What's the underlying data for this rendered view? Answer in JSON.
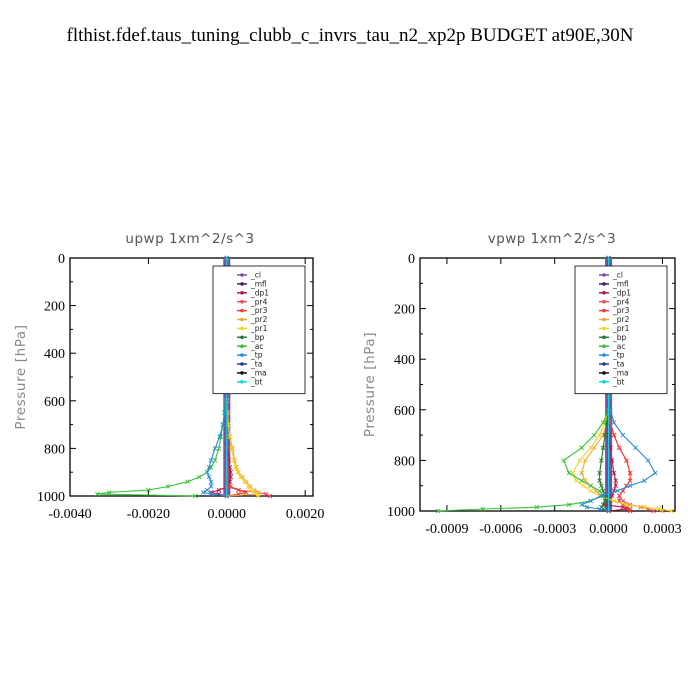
{
  "page_title": "flthist.fdef.taus_tuning_clubb_c_invrs_tau_n2_xp2p  BUDGET at90E,30N",
  "chart_data": [
    {
      "type": "line",
      "title": "upwp   1xm^2/s^3",
      "ylabel": "Pressure  [hPa]",
      "xlim": [
        -0.004,
        0.0022
      ],
      "ylim": [
        1000,
        0
      ],
      "xticks": [
        -0.004,
        -0.002,
        0.0,
        0.002
      ],
      "xtick_labels": [
        "-0.0040",
        "-0.0020",
        "0.0000",
        "0.0020"
      ],
      "yticks": [
        0,
        200,
        400,
        600,
        800,
        1000
      ],
      "ytick_labels": [
        "0",
        "200",
        "400",
        "600",
        "800",
        "1000"
      ],
      "legend_position": "top-right",
      "levels": [
        0,
        50,
        100,
        150,
        200,
        250,
        300,
        350,
        400,
        450,
        500,
        550,
        600,
        650,
        700,
        750,
        800,
        850,
        880,
        900,
        920,
        940,
        960,
        975,
        985,
        992,
        1000
      ],
      "series": [
        {
          "name": "_cl",
          "color": "#7b4fa8",
          "values": [
            0,
            0,
            0,
            0,
            0,
            0,
            0,
            0,
            0,
            0,
            0,
            0,
            0,
            0,
            0,
            0,
            0,
            0,
            0,
            0,
            0,
            0,
            0,
            0,
            0,
            0,
            0
          ]
        },
        {
          "name": "_mfl",
          "color": "#4b1a6b",
          "values": [
            0,
            0,
            0,
            0,
            0,
            0,
            0,
            0,
            0,
            0,
            0,
            0,
            0,
            0,
            0,
            0,
            0,
            0,
            0,
            0,
            0,
            0,
            0,
            0,
            0,
            0,
            0
          ]
        },
        {
          "name": "_dp1",
          "color": "#b3164b",
          "values": [
            0,
            0,
            0,
            0,
            0,
            0,
            0,
            0,
            0,
            0,
            0,
            0,
            0,
            0,
            0,
            0,
            2e-05,
            5e-05,
            8e-05,
            0.0001,
            0.0001,
            8e-05,
            5e-05,
            -0.0002,
            -0.0004,
            -0.0002,
            0
          ]
        },
        {
          "name": "_pr4",
          "color": "#e8505a",
          "values": [
            0,
            0,
            0,
            0,
            0,
            0,
            0,
            0,
            0,
            0,
            0,
            0,
            0,
            0,
            0,
            0,
            0,
            0,
            0,
            0,
            0,
            0,
            0,
            0.0003,
            0.0008,
            0.001,
            0.0011
          ]
        },
        {
          "name": "_pr3",
          "color": "#f03c3c",
          "values": [
            0,
            0,
            0,
            0,
            0,
            0,
            0,
            0,
            0,
            0,
            0,
            0,
            0,
            0,
            0,
            0,
            0,
            0,
            0,
            0,
            0,
            0,
            0.0001,
            0.0003,
            0.0005,
            0.0003,
            0
          ]
        },
        {
          "name": "_pr2",
          "color": "#f2a53a",
          "values": [
            0,
            0,
            0,
            0,
            0,
            0,
            0,
            0,
            0,
            0,
            0,
            0,
            0,
            2e-05,
            4e-05,
            8e-05,
            0.00015,
            0.0002,
            0.00025,
            0.0003,
            0.0004,
            0.0005,
            0.0006,
            0.0007,
            0.0008,
            0.0008,
            0
          ]
        },
        {
          "name": "_pr1",
          "color": "#f5d21e",
          "values": [
            0,
            0,
            0,
            0,
            0,
            0,
            0,
            0,
            0,
            0,
            0,
            0,
            0,
            2e-05,
            4e-05,
            8e-05,
            0.00012,
            0.00018,
            0.00022,
            0.00028,
            0.00035,
            0.00045,
            0.00055,
            0.0006,
            0.0007,
            0.0008,
            0.0008
          ]
        },
        {
          "name": "_bp",
          "color": "#1f7a2a",
          "values": [
            0,
            0,
            0,
            0,
            0,
            0,
            0,
            0,
            0,
            0,
            0,
            0,
            0,
            0,
            0,
            0,
            0,
            0,
            0,
            0,
            0,
            0,
            0,
            0,
            0,
            0,
            0
          ]
        },
        {
          "name": "_ac",
          "color": "#36c236",
          "values": [
            0,
            0,
            0,
            0,
            0,
            0,
            0,
            0,
            0,
            0,
            0,
            0,
            -3e-05,
            -6e-05,
            -0.0001,
            -0.00015,
            -0.0002,
            -0.0003,
            -0.0004,
            -0.0005,
            -0.0007,
            -0.001,
            -0.0015,
            -0.002,
            -0.003,
            -0.0033,
            -0.0008
          ]
        },
        {
          "name": "_tp",
          "color": "#2a8ad6",
          "values": [
            0,
            0,
            0,
            0,
            0,
            0,
            0,
            0,
            0,
            0,
            0,
            0,
            -2e-05,
            -5e-05,
            -0.0001,
            -0.00018,
            -0.0003,
            -0.0004,
            -0.00045,
            -0.0005,
            -0.00045,
            -0.0004,
            -0.0004,
            -0.0005,
            -0.0006,
            -0.0004,
            0
          ]
        },
        {
          "name": "_ta",
          "color": "#1a3fa0",
          "values": [
            0,
            0,
            0,
            0,
            0,
            0,
            0,
            0,
            0,
            0,
            0,
            0,
            0,
            0,
            0,
            0,
            0,
            0,
            0,
            0,
            0,
            0,
            0,
            0,
            0,
            0,
            0
          ]
        },
        {
          "name": "_ma",
          "color": "#111111",
          "values": [
            0,
            0,
            0,
            0,
            0,
            0,
            0,
            0,
            0,
            0,
            0,
            0,
            0,
            0,
            0,
            0,
            0,
            0,
            0,
            0,
            0,
            0,
            0,
            0,
            0,
            0,
            0
          ]
        },
        {
          "name": "_bt",
          "color": "#11d4e0",
          "values": [
            0,
            0,
            0,
            0,
            0,
            0,
            0,
            0,
            0,
            0,
            0,
            0,
            0,
            0,
            0,
            0,
            0,
            0,
            0,
            0,
            0,
            0,
            0,
            0,
            0,
            0,
            0
          ]
        }
      ]
    },
    {
      "type": "line",
      "title": "vpwp   1xm^2/s^3",
      "ylabel": "Pressure  [hPa]",
      "xlim": [
        -0.00105,
        0.00037
      ],
      "ylim": [
        1000,
        0
      ],
      "xticks": [
        -0.0009,
        -0.0006,
        -0.0003,
        0.0,
        0.0003
      ],
      "xtick_labels": [
        "-0.0009",
        "-0.0006",
        "-0.0003",
        "0.0000",
        "0.0003"
      ],
      "yticks": [
        0,
        200,
        400,
        600,
        800,
        1000
      ],
      "ytick_labels": [
        "0",
        "200",
        "400",
        "600",
        "800",
        "1000"
      ],
      "legend_position": "top-right",
      "levels": [
        0,
        50,
        100,
        150,
        200,
        250,
        300,
        350,
        400,
        450,
        500,
        550,
        600,
        650,
        700,
        750,
        800,
        850,
        880,
        900,
        920,
        940,
        960,
        975,
        985,
        992,
        1000
      ],
      "series": [
        {
          "name": "_cl",
          "color": "#7b4fa8",
          "values": [
            0,
            0,
            0,
            0,
            0,
            0,
            0,
            0,
            0,
            0,
            0,
            0,
            0,
            0,
            0,
            0,
            0,
            0,
            0,
            0,
            0,
            0,
            0,
            0,
            0,
            0,
            0
          ]
        },
        {
          "name": "_mfl",
          "color": "#4b1a6b",
          "values": [
            0,
            0,
            0,
            0,
            0,
            0,
            0,
            0,
            0,
            0,
            0,
            0,
            0,
            0,
            0,
            0,
            0,
            0,
            0,
            0,
            0,
            0,
            0,
            0,
            0,
            0,
            0
          ]
        },
        {
          "name": "_dp1",
          "color": "#b3164b",
          "values": [
            0,
            0,
            0,
            0,
            0,
            0,
            0,
            0,
            0,
            0,
            0,
            0,
            0,
            0,
            0,
            1e-05,
            2e-05,
            3e-05,
            4e-05,
            4e-05,
            3e-05,
            2e-05,
            0,
            -2e-05,
            8e-05,
            0.0001,
            0
          ]
        },
        {
          "name": "_pr4",
          "color": "#e8505a",
          "values": [
            0,
            0,
            0,
            0,
            0,
            0,
            0,
            0,
            0,
            0,
            0,
            0,
            0,
            1e-05,
            3e-05,
            6e-05,
            0.0001,
            0.00012,
            0.00012,
            0.0001,
            8e-05,
            6e-05,
            8e-05,
            0.00012,
            0.00018,
            0.00022,
            0.00025
          ]
        },
        {
          "name": "_pr3",
          "color": "#f03c3c",
          "values": [
            0,
            0,
            0,
            0,
            0,
            0,
            0,
            0,
            0,
            0,
            0,
            0,
            0,
            1e-05,
            3e-05,
            6e-05,
            0.0001,
            0.00012,
            0.00012,
            0.0001,
            8e-05,
            6e-05,
            6e-05,
            8e-05,
            0.0001,
            0.00012,
            0.00012
          ]
        },
        {
          "name": "_pr2",
          "color": "#f2a53a",
          "values": [
            0,
            0,
            0,
            0,
            0,
            0,
            0,
            0,
            0,
            0,
            0,
            0,
            0,
            -1e-05,
            -3e-05,
            -8e-05,
            -0.00013,
            -0.00015,
            -0.00013,
            -0.0001,
            -7e-05,
            -4e-05,
            3e-05,
            0.0001,
            0.0002,
            0.00028,
            0.0003
          ]
        },
        {
          "name": "_pr1",
          "color": "#f5d21e",
          "values": [
            0,
            0,
            0,
            0,
            0,
            0,
            0,
            0,
            0,
            0,
            0,
            0,
            0,
            -2e-05,
            -5e-05,
            -0.0001,
            -0.00016,
            -0.0002,
            -0.00018,
            -0.00014,
            -0.0001,
            -5e-05,
            3e-05,
            0.0001,
            0.0002,
            0.00028,
            0.00035
          ]
        },
        {
          "name": "_bp",
          "color": "#1f7a2a",
          "values": [
            0,
            0,
            0,
            0,
            0,
            0,
            0,
            0,
            0,
            0,
            0,
            0,
            0,
            -1e-05,
            -2e-05,
            -3e-05,
            -4e-05,
            -5e-05,
            -5e-05,
            -4e-05,
            -3e-05,
            -2e-05,
            -2e-05,
            -3e-05,
            -4e-05,
            -3e-05,
            0
          ]
        },
        {
          "name": "_ac",
          "color": "#36c236",
          "values": [
            0,
            0,
            0,
            0,
            0,
            0,
            0,
            0,
            0,
            0,
            0,
            0,
            0,
            -3e-05,
            -8e-05,
            -0.00015,
            -0.00025,
            -0.00022,
            -0.00015,
            -0.0001,
            -5e-05,
            -3e-05,
            -0.0001,
            -0.00022,
            -0.0004,
            -0.0007,
            -0.00095
          ]
        },
        {
          "name": "_tp",
          "color": "#2a8ad6",
          "values": [
            0,
            0,
            0,
            0,
            0,
            0,
            0,
            0,
            0,
            0,
            0,
            0,
            1e-05,
            3e-05,
            8e-05,
            0.00015,
            0.00022,
            0.00026,
            0.0002,
            0.00012,
            5e-05,
            -4e-05,
            -0.0001,
            -0.00015,
            -0.00012,
            -5e-05,
            0
          ]
        },
        {
          "name": "_ta",
          "color": "#1a3fa0",
          "values": [
            0,
            0,
            0,
            0,
            0,
            0,
            0,
            0,
            0,
            0,
            0,
            0,
            0,
            0,
            0,
            0,
            0,
            0,
            0,
            0,
            0,
            0,
            0,
            0,
            0,
            0,
            0
          ]
        },
        {
          "name": "_ma",
          "color": "#111111",
          "values": [
            0,
            0,
            0,
            0,
            0,
            0,
            0,
            0,
            0,
            0,
            0,
            0,
            0,
            0,
            0,
            0,
            0,
            0,
            0,
            0,
            0,
            0,
            0,
            0,
            0,
            0,
            0
          ]
        },
        {
          "name": "_bt",
          "color": "#11d4e0",
          "values": [
            0,
            0,
            0,
            0,
            0,
            0,
            0,
            0,
            0,
            0,
            0,
            0,
            0,
            0,
            0,
            0,
            0,
            0,
            0,
            0,
            0,
            0,
            0,
            0,
            0,
            0,
            0
          ]
        }
      ]
    }
  ]
}
